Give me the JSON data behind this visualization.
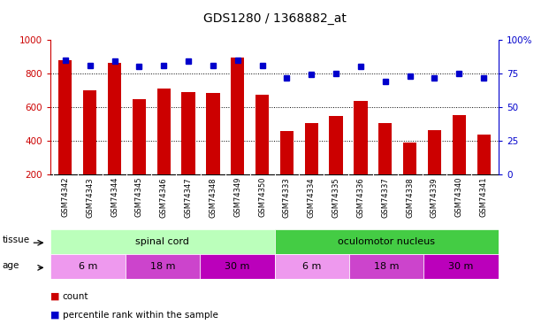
{
  "title": "GDS1280 / 1368882_at",
  "samples": [
    "GSM74342",
    "GSM74343",
    "GSM74344",
    "GSM74345",
    "GSM74346",
    "GSM74347",
    "GSM74348",
    "GSM74349",
    "GSM74350",
    "GSM74333",
    "GSM74334",
    "GSM74335",
    "GSM74336",
    "GSM74337",
    "GSM74338",
    "GSM74339",
    "GSM74340",
    "GSM74341"
  ],
  "counts": [
    880,
    700,
    865,
    645,
    710,
    690,
    685,
    895,
    675,
    455,
    505,
    548,
    635,
    505,
    390,
    465,
    550,
    435
  ],
  "percentiles": [
    85,
    81,
    84,
    80,
    81,
    84,
    81,
    85,
    81,
    72,
    74,
    75,
    80,
    69,
    73,
    72,
    75,
    72
  ],
  "ylim_left": [
    200,
    1000
  ],
  "ylim_right": [
    0,
    100
  ],
  "yticks_left": [
    200,
    400,
    600,
    800,
    1000
  ],
  "yticks_right": [
    0,
    25,
    50,
    75,
    100
  ],
  "bar_color": "#cc0000",
  "dot_color": "#0000cc",
  "tissue_groups": [
    {
      "label": "spinal cord",
      "start": 0,
      "end": 9,
      "color": "#bbffbb"
    },
    {
      "label": "oculomotor nucleus",
      "start": 9,
      "end": 18,
      "color": "#44cc44"
    }
  ],
  "age_groups": [
    {
      "label": "6 m",
      "start": 0,
      "end": 3,
      "color": "#ee99ee"
    },
    {
      "label": "18 m",
      "start": 3,
      "end": 6,
      "color": "#cc44cc"
    },
    {
      "label": "30 m",
      "start": 6,
      "end": 9,
      "color": "#bb00bb"
    },
    {
      "label": "6 m",
      "start": 9,
      "end": 12,
      "color": "#ee99ee"
    },
    {
      "label": "18 m",
      "start": 12,
      "end": 15,
      "color": "#cc44cc"
    },
    {
      "label": "30 m",
      "start": 15,
      "end": 18,
      "color": "#bb00bb"
    }
  ],
  "background_color": "#ffffff",
  "plot_bg_color": "#ffffff",
  "axis_color_left": "#cc0000",
  "axis_color_right": "#0000cc",
  "title_fontsize": 10,
  "tick_fontsize": 7.5,
  "bar_width": 0.55,
  "sample_bg": "#dddddd",
  "grid_yticks": [
    400,
    600,
    800
  ]
}
